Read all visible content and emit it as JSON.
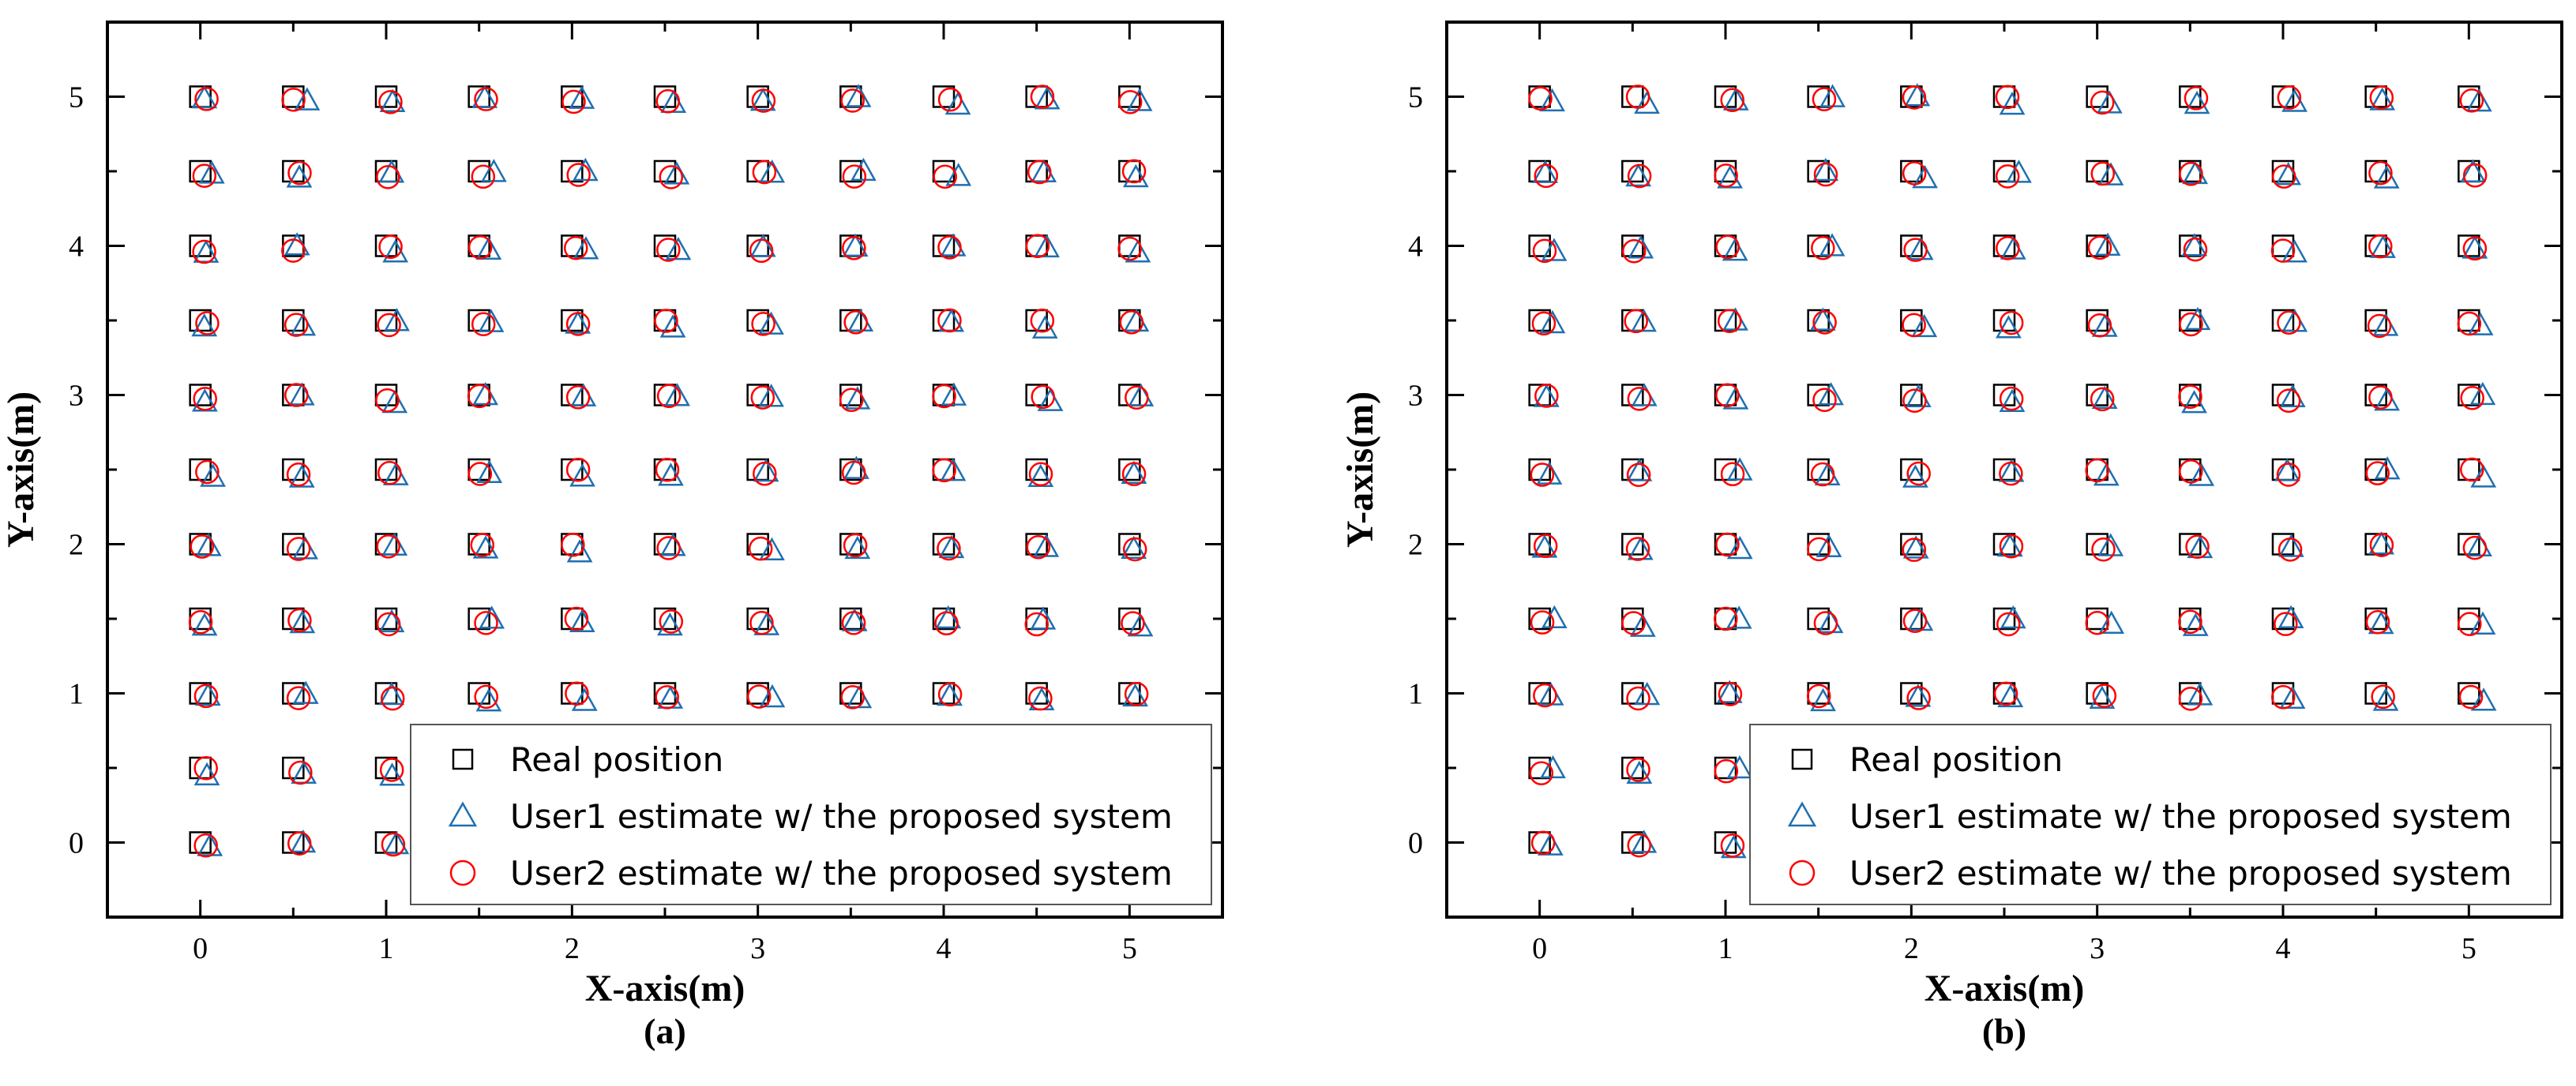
{
  "chart_data": [
    {
      "type": "scatter",
      "panel_label": "(a)",
      "xlabel": "X-axis(m)",
      "ylabel": "Y-axis(m)",
      "xlim": [
        -0.5,
        5.5
      ],
      "ylim": [
        -0.5,
        5.5
      ],
      "xticks": [
        0,
        1,
        2,
        3,
        4,
        5
      ],
      "yticks": [
        0,
        1,
        2,
        3,
        4,
        5
      ],
      "grid": false,
      "legend_position": "bottom-right",
      "series": [
        {
          "name": "Real position",
          "marker": "square",
          "color": "#000000",
          "grid_x": [
            0,
            0.5,
            1,
            1.5,
            2,
            2.5,
            3,
            3.5,
            4,
            4.5,
            5
          ],
          "grid_y": [
            0,
            0.5,
            1,
            1.5,
            2,
            2.5,
            3,
            3.5,
            4,
            4.5,
            5
          ]
        },
        {
          "name": "User1 estimate w/ the proposed system",
          "marker": "triangle",
          "color": "#1f6fb0",
          "approx_offset": [
            0.05,
            -0.03
          ]
        },
        {
          "name": "User2 estimate w/ the proposed system",
          "marker": "circle",
          "color": "#ff0000",
          "approx_offset": [
            0.02,
            -0.02
          ]
        }
      ]
    },
    {
      "type": "scatter",
      "panel_label": "(b)",
      "xlabel": "X-axis(m)",
      "ylabel": "Y-axis(m)",
      "xlim": [
        -0.5,
        5.5
      ],
      "ylim": [
        -0.5,
        5.5
      ],
      "xticks": [
        0,
        1,
        2,
        3,
        4,
        5
      ],
      "yticks": [
        0,
        1,
        2,
        3,
        4,
        5
      ],
      "grid": false,
      "legend_position": "bottom-right",
      "series": [
        {
          "name": "Real position",
          "marker": "square",
          "color": "#000000",
          "grid_x": [
            0,
            0.5,
            1,
            1.5,
            2,
            2.5,
            3,
            3.5,
            4,
            4.5,
            5
          ],
          "grid_y": [
            0,
            0.5,
            1,
            1.5,
            2,
            2.5,
            3,
            3.5,
            4,
            4.5,
            5
          ]
        },
        {
          "name": "User1 estimate w/ the proposed system",
          "marker": "triangle",
          "color": "#1f6fb0",
          "approx_offset": [
            0.05,
            -0.03
          ]
        },
        {
          "name": "User2 estimate w/ the proposed system",
          "marker": "circle",
          "color": "#ff0000",
          "approx_offset": [
            0.02,
            -0.02
          ]
        }
      ]
    }
  ]
}
